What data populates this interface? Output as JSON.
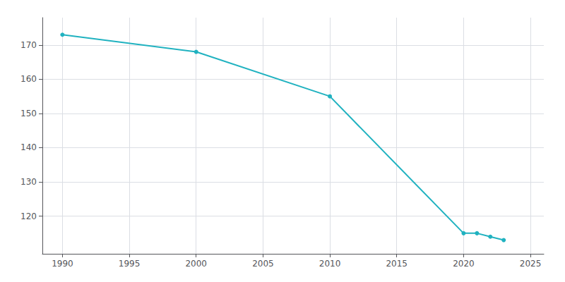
{
  "chart_data": {
    "type": "line",
    "x": [
      1990,
      2000,
      2010,
      2020,
      2021,
      2022,
      2023
    ],
    "values": [
      173,
      168,
      155,
      115,
      115,
      114,
      113
    ],
    "color": "#20b2c0",
    "marker": "circle",
    "xlim": [
      1988.5,
      2026
    ],
    "ylim": [
      109,
      178
    ],
    "xticks": [
      1990,
      1995,
      2000,
      2005,
      2010,
      2015,
      2020,
      2025
    ],
    "yticks": [
      120,
      130,
      140,
      150,
      160,
      170
    ],
    "grid": true
  }
}
